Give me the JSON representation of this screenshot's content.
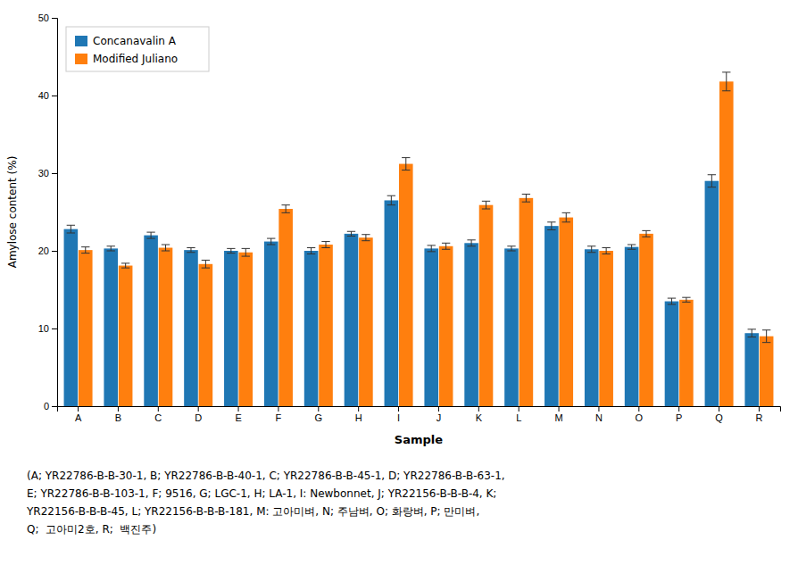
{
  "chart_data": {
    "type": "bar",
    "categories": [
      "A",
      "B",
      "C",
      "D",
      "E",
      "F",
      "G",
      "H",
      "I",
      "J",
      "K",
      "L",
      "M",
      "N",
      "O",
      "P",
      "Q",
      "R"
    ],
    "series": [
      {
        "name": "Concanavalin A",
        "values": [
          22.8,
          20.3,
          22.0,
          20.1,
          20.0,
          21.2,
          20.0,
          22.2,
          26.5,
          20.3,
          21.0,
          20.3,
          23.2,
          20.2,
          20.5,
          13.5,
          29.0,
          9.4
        ],
        "errors": [
          0.5,
          0.3,
          0.4,
          0.3,
          0.3,
          0.4,
          0.4,
          0.3,
          0.6,
          0.4,
          0.4,
          0.3,
          0.5,
          0.4,
          0.3,
          0.4,
          0.8,
          0.5
        ]
      },
      {
        "name": "Modified Juliano",
        "values": [
          20.1,
          18.1,
          20.4,
          18.3,
          19.8,
          25.4,
          20.8,
          21.7,
          31.2,
          20.6,
          25.9,
          26.8,
          24.3,
          20.0,
          22.2,
          13.7,
          41.8,
          9.0
        ],
        "errors": [
          0.4,
          0.3,
          0.4,
          0.5,
          0.5,
          0.5,
          0.4,
          0.4,
          0.8,
          0.4,
          0.5,
          0.5,
          0.6,
          0.4,
          0.4,
          0.3,
          1.2,
          0.8
        ]
      }
    ],
    "x_label": "Sample",
    "y_label": "Amylose content (%)",
    "ylim": [
      0,
      50
    ],
    "yticks": [
      0,
      10,
      20,
      30,
      40,
      50
    ],
    "legend": "upper left",
    "grid": false,
    "annotations": [
      "(A; YR22786-B-B-30-1, B; YR22786-B-B-40-1, C; YR22786-B-B-45-1, D; YR22786-B-B-63-1,",
      "E; YR22786-B-B-103-1, F; 9516, G; LGC-1, H; LA-1, I: Newbonnet, J; YR22156-B-B-B-4, K;",
      "YR22156-B-B-B-45, L; YR22156-B-B-B-181, M: 고아미벼, N; 주남벼, O; 화랑벼, P; 만미벼,",
      "Q;  고아미2호, R;  백진주)"
    ]
  }
}
